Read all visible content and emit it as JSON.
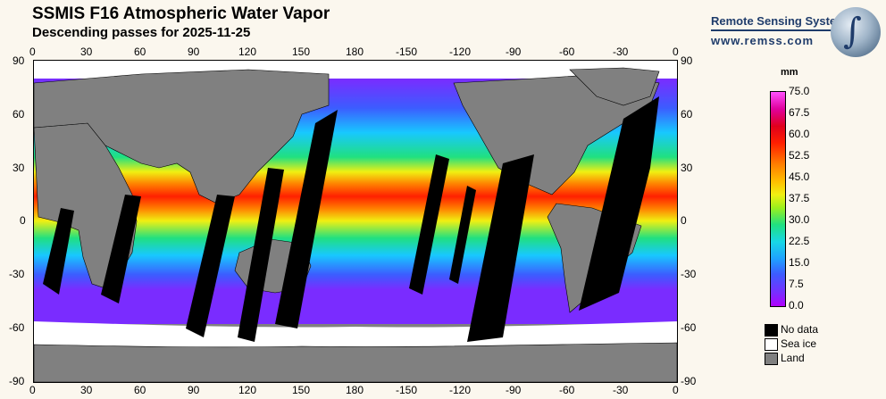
{
  "header": {
    "title": "SSMIS F16 Atmospheric Water Vapor",
    "subtitle": "Descending passes for 2025-11-25"
  },
  "brand": {
    "name": "Remote Sensing Systems",
    "url": "www.remss.com",
    "logo": "globe-icon"
  },
  "map": {
    "lon_ticks": [
      "0",
      "30",
      "60",
      "90",
      "120",
      "150",
      "180",
      "-150",
      "-120",
      "-90",
      "-60",
      "-30",
      "0"
    ],
    "lat_ticks": [
      "90",
      "60",
      "30",
      "0",
      "-30",
      "-60",
      "-90"
    ],
    "colors": {
      "no_data": "#000000",
      "sea_ice": "#ffffff",
      "land": "#808080"
    }
  },
  "colorbar": {
    "unit": "mm",
    "labels": [
      "75.0",
      "67.5",
      "60.0",
      "52.5",
      "45.0",
      "37.5",
      "30.0",
      "22.5",
      "15.0",
      "7.5",
      "0.0"
    ],
    "range": [
      0,
      75
    ]
  },
  "legend": [
    {
      "label": "No data",
      "color": "#000000"
    },
    {
      "label": "Sea ice",
      "color": "#ffffff"
    },
    {
      "label": "Land",
      "color": "#808080"
    }
  ]
}
